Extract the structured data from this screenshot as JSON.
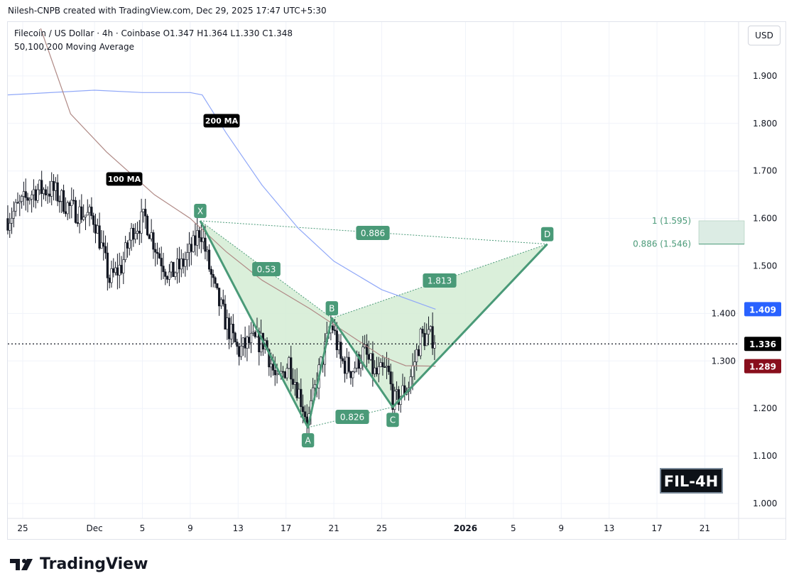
{
  "header": {
    "credit": "Nilesh-CNPB created with TradingView.com, Dec 29, 2025 17:47 UTC+5:30",
    "symbol_line": "Filecoin / US Dollar · 4h · Coinbase  O1.347  H1.364  L1.330  C1.348",
    "indicator_line": "50,100,200 Moving Average",
    "currency_button": "USD"
  },
  "footer": {
    "logo_text": "TradingView"
  },
  "chart_data": {
    "type": "candlestick",
    "symbol": "FIL-4H",
    "ylim": [
      0.955,
      2.007
    ],
    "y_ticks": [
      "1.000",
      "1.100",
      "1.200",
      "1.300",
      "1.400",
      "1.500",
      "1.600",
      "1.700",
      "1.800",
      "1.900"
    ],
    "x_ticks": [
      {
        "label": "25",
        "date": "2025-11-25"
      },
      {
        "label": "Dec",
        "date": "2025-12-01"
      },
      {
        "label": "5",
        "date": "2025-12-05"
      },
      {
        "label": "9",
        "date": "2025-12-09"
      },
      {
        "label": "13",
        "date": "2025-12-13"
      },
      {
        "label": "17",
        "date": "2025-12-17"
      },
      {
        "label": "21",
        "date": "2025-12-21"
      },
      {
        "label": "25",
        "date": "2025-12-25"
      },
      {
        "label": "2026",
        "date": "2026-01-01"
      },
      {
        "label": "5",
        "date": "2026-01-05"
      },
      {
        "label": "9",
        "date": "2026-01-09"
      },
      {
        "label": "13",
        "date": "2026-01-13"
      },
      {
        "label": "17",
        "date": "2026-01-17"
      },
      {
        "label": "21",
        "date": "2026-01-21"
      }
    ],
    "price_path": [
      [
        "2025-11-23T18:00",
        1.6
      ],
      [
        "2025-11-24T12:00",
        1.62
      ],
      [
        "2025-11-26T00:00",
        1.66
      ],
      [
        "2025-11-27T12:00",
        1.66
      ],
      [
        "2025-11-29T00:00",
        1.62
      ],
      [
        "2025-12-01T00:00",
        1.6
      ],
      [
        "2025-12-02T06:00",
        1.47
      ],
      [
        "2025-12-03T06:00",
        1.5
      ],
      [
        "2025-12-04T06:00",
        1.58
      ],
      [
        "2025-12-05T06:00",
        1.6
      ],
      [
        "2025-12-06T06:00",
        1.53
      ],
      [
        "2025-12-07T06:00",
        1.48
      ],
      [
        "2025-12-08T06:00",
        1.5
      ],
      [
        "2025-12-09T06:00",
        1.54
      ],
      [
        "2025-12-09T20:00",
        1.58
      ],
      [
        "2025-12-11T00:00",
        1.45
      ],
      [
        "2025-12-12T00:00",
        1.38
      ],
      [
        "2025-12-13T00:00",
        1.32
      ],
      [
        "2025-12-14T00:00",
        1.34
      ],
      [
        "2025-12-15T06:00",
        1.34
      ],
      [
        "2025-12-16T06:00",
        1.25
      ],
      [
        "2025-12-17T06:00",
        1.3
      ],
      [
        "2025-12-18T06:00",
        1.22
      ],
      [
        "2025-12-18T20:00",
        1.17
      ],
      [
        "2025-12-19T14:00",
        1.26
      ],
      [
        "2025-12-20T20:00",
        1.38
      ],
      [
        "2025-12-21T14:00",
        1.3
      ],
      [
        "2025-12-22T12:00",
        1.28
      ],
      [
        "2025-12-23T12:00",
        1.32
      ],
      [
        "2025-12-24T12:00",
        1.27
      ],
      [
        "2025-12-25T12:00",
        1.28
      ],
      [
        "2025-12-26T00:00",
        1.21
      ],
      [
        "2025-12-27T06:00",
        1.25
      ],
      [
        "2025-12-28T06:00",
        1.35
      ],
      [
        "2025-12-29T12:00",
        1.35
      ]
    ],
    "moving_averages": [
      {
        "name": "200 MA",
        "color": "#90a8f8",
        "last": "1.409",
        "last_color": "#2962ff",
        "points": [
          [
            "2025-11-23T18:00",
            1.86
          ],
          [
            "2025-12-01T00:00",
            1.87
          ],
          [
            "2025-12-05T00:00",
            1.865
          ],
          [
            "2025-12-09T00:00",
            1.865
          ],
          [
            "2025-12-10T00:00",
            1.86
          ],
          [
            "2025-12-12T00:00",
            1.78
          ],
          [
            "2025-12-15T00:00",
            1.67
          ],
          [
            "2025-12-18T00:00",
            1.58
          ],
          [
            "2025-12-21T00:00",
            1.51
          ],
          [
            "2025-12-25T00:00",
            1.45
          ],
          [
            "2025-12-29T12:00",
            1.409
          ]
        ]
      },
      {
        "name": "100 MA",
        "color": "#b08a86",
        "last": "1.289",
        "last_color": "#880e1c",
        "points": [
          [
            "2025-11-26T12:00",
            2.0
          ],
          [
            "2025-11-29T00:00",
            1.82
          ],
          [
            "2025-12-02T00:00",
            1.74
          ],
          [
            "2025-12-06T00:00",
            1.65
          ],
          [
            "2025-12-09T00:00",
            1.6
          ],
          [
            "2025-12-12T00:00",
            1.53
          ],
          [
            "2025-12-15T00:00",
            1.47
          ],
          [
            "2025-12-19T00:00",
            1.41
          ],
          [
            "2025-12-22T00:00",
            1.36
          ],
          [
            "2025-12-25T00:00",
            1.31
          ],
          [
            "2025-12-27T00:00",
            1.29
          ],
          [
            "2025-12-29T12:00",
            1.289
          ]
        ]
      }
    ],
    "last_price": "1.336",
    "harmonic_pattern": {
      "color": "#4a9a78",
      "points": [
        {
          "label": "X",
          "date": "2025-12-09T20:00",
          "price": 1.595
        },
        {
          "label": "A",
          "date": "2025-12-18T20:00",
          "price": 1.16
        },
        {
          "label": "B",
          "date": "2025-12-20T20:00",
          "price": 1.39
        },
        {
          "label": "C",
          "date": "2025-12-25T22:00",
          "price": 1.203
        },
        {
          "label": "D",
          "date": "2026-01-07T20:00",
          "price": 1.546
        }
      ],
      "ratios": [
        {
          "label": "0.53",
          "between": "X-B"
        },
        {
          "label": "0.826",
          "between": "A-C"
        },
        {
          "label": "1.813",
          "between": "B-D"
        },
        {
          "label": "0.886",
          "between": "X-D"
        }
      ],
      "prz": {
        "top_label": "1 (1.595)",
        "top": 1.595,
        "bottom_label": "0.886 (1.546)",
        "bottom": 1.546
      }
    },
    "annotations": {
      "ma200_label": "200 MA",
      "ma100_label": "100 MA",
      "ticker_box": "FIL-4H"
    }
  }
}
